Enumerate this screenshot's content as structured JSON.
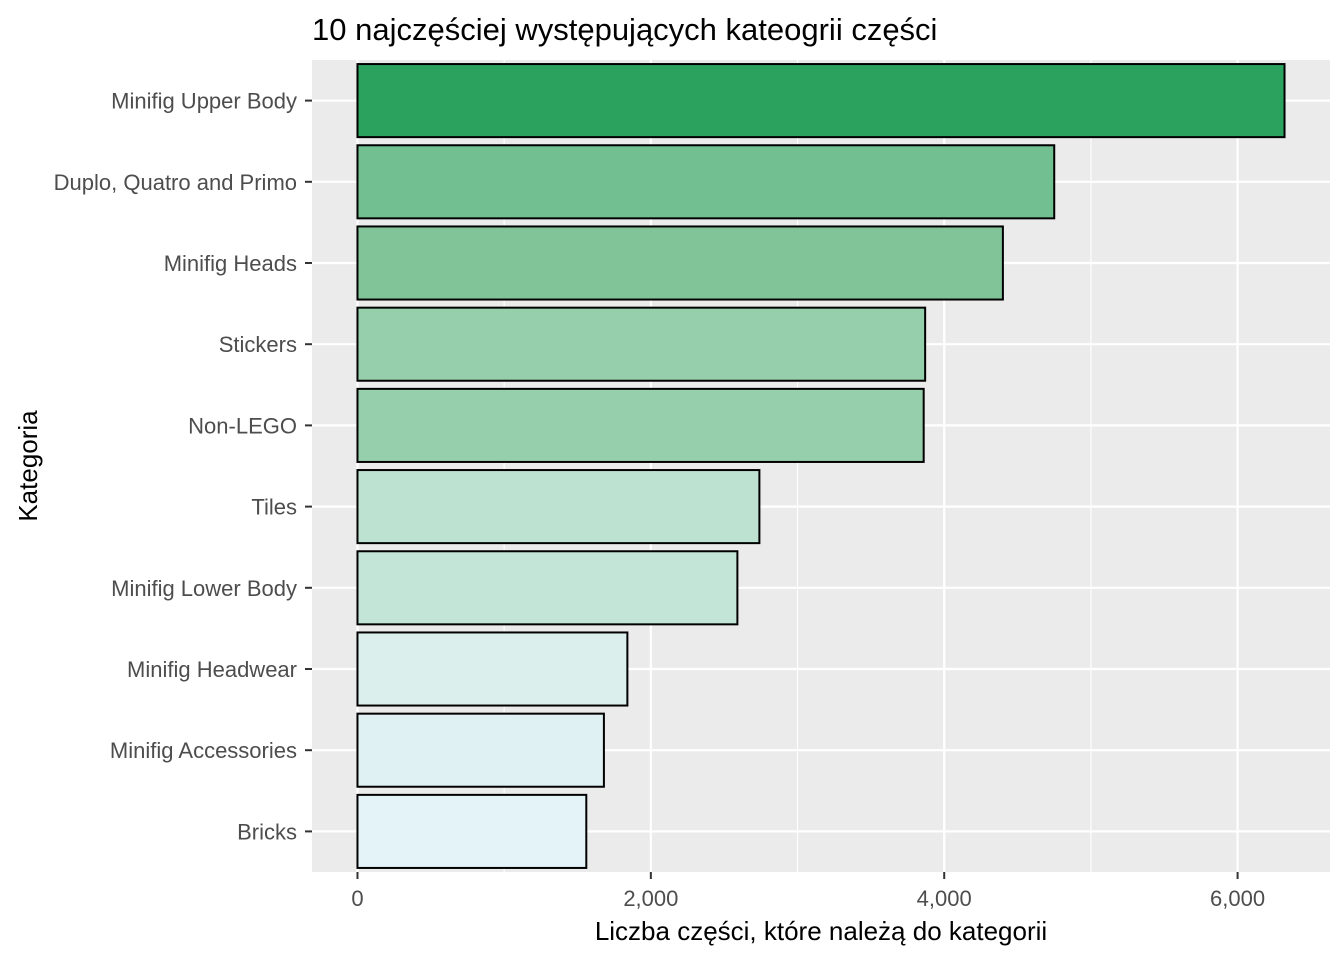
{
  "chart_data": {
    "type": "bar",
    "orientation": "horizontal",
    "title": "10 najczęściej występujących kateogrii części",
    "xlabel": "Liczba części, które należą do kategorii",
    "ylabel": "Kategoria",
    "xlim": [
      -310,
      6630
    ],
    "xticks": [
      0,
      2000,
      4000,
      6000
    ],
    "xtick_labels": [
      "0",
      "2,000",
      "4,000",
      "6,000"
    ],
    "grid": true,
    "categories": [
      "Minifig Upper Body",
      "Duplo, Quatro and Primo",
      "Minifig Heads",
      "Stickers",
      "Non-LEGO",
      "Tiles",
      "Minifig Lower Body",
      "Minifig Headwear",
      "Minifig Accessories",
      "Bricks"
    ],
    "values": [
      6320,
      4750,
      4400,
      3870,
      3860,
      2740,
      2590,
      1840,
      1680,
      1560
    ],
    "fill_colors": [
      "#2ca25f",
      "#72bf91",
      "#80c498",
      "#96cfab",
      "#96cfab",
      "#bde2d2",
      "#c2e5d7",
      "#dbefed",
      "#dff1f2",
      "#e4f3f8"
    ],
    "bar_outline_color": "#000000",
    "panel_background": "#ebebeb",
    "grid_color": "#ffffff"
  }
}
